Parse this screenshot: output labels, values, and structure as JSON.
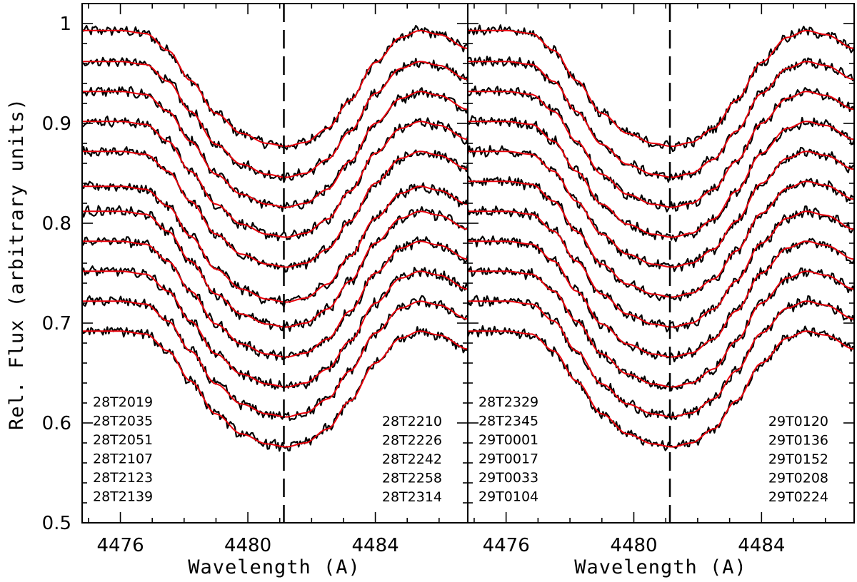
{
  "chart_data": {
    "type": "line",
    "ylabel": "Rel. Flux (arbitrary units)",
    "ylim": [
      0.5,
      1.02
    ],
    "yticks": [
      0.5,
      0.6,
      0.7,
      0.8,
      0.9,
      1.0
    ],
    "ytick_labels": [
      "0.5",
      "0.6",
      "0.7",
      "0.8",
      "0.9",
      "1"
    ],
    "line_center": 4481.13,
    "panels": [
      {
        "xlabel": "Wavelength (A)",
        "xlim": [
          4474.8,
          4486.9
        ],
        "xticks": [
          4476,
          4480,
          4484
        ],
        "xtick_labels": [
          "4476",
          "4480",
          "4484"
        ],
        "left_labels": [
          "28T2019",
          "28T2035",
          "28T2051",
          "28T2107",
          "28T2123",
          "28T2139"
        ],
        "right_labels": [
          "28T2210",
          "28T2226",
          "28T2242",
          "28T2258",
          "28T2314"
        ],
        "offsets": [
          0.993,
          0.962,
          0.932,
          0.902,
          0.872,
          0.837,
          0.812,
          0.782,
          0.752,
          0.722,
          0.692
        ],
        "observed_color": "#000000",
        "model_color": "#e8000b"
      },
      {
        "xlabel": "Wavelength (A)",
        "xlim": [
          4474.8,
          4486.9
        ],
        "xticks": [
          4476,
          4480,
          4484
        ],
        "xtick_labels": [
          "4476",
          "4480",
          "4484"
        ],
        "left_labels": [
          "28T2329",
          "28T2345",
          "29T0001",
          "29T0017",
          "29T0033",
          "29T0104"
        ],
        "right_labels": [
          "29T0120",
          "29T0136",
          "29T0152",
          "29T0208",
          "29T0224"
        ],
        "offsets": [
          0.993,
          0.962,
          0.932,
          0.902,
          0.872,
          0.842,
          0.812,
          0.782,
          0.752,
          0.722,
          0.692
        ],
        "observed_color": "#000000",
        "model_color": "#e8000b"
      }
    ],
    "profile": {
      "description": "continuum-normalised line profile relative to each spectrum's top level",
      "wavelength": [
        4474.8,
        4476.0,
        4476.8,
        4477.5,
        4478.2,
        4479.0,
        4479.8,
        4480.6,
        4481.2,
        4481.8,
        4482.5,
        4483.2,
        4484.0,
        4484.8,
        4485.4,
        4486.0,
        4486.9
      ],
      "depth": [
        0.0,
        0.0,
        -0.003,
        -0.02,
        -0.05,
        -0.083,
        -0.103,
        -0.113,
        -0.116,
        -0.112,
        -0.098,
        -0.07,
        -0.032,
        -0.007,
        0.0,
        -0.004,
        -0.018
      ]
    }
  }
}
